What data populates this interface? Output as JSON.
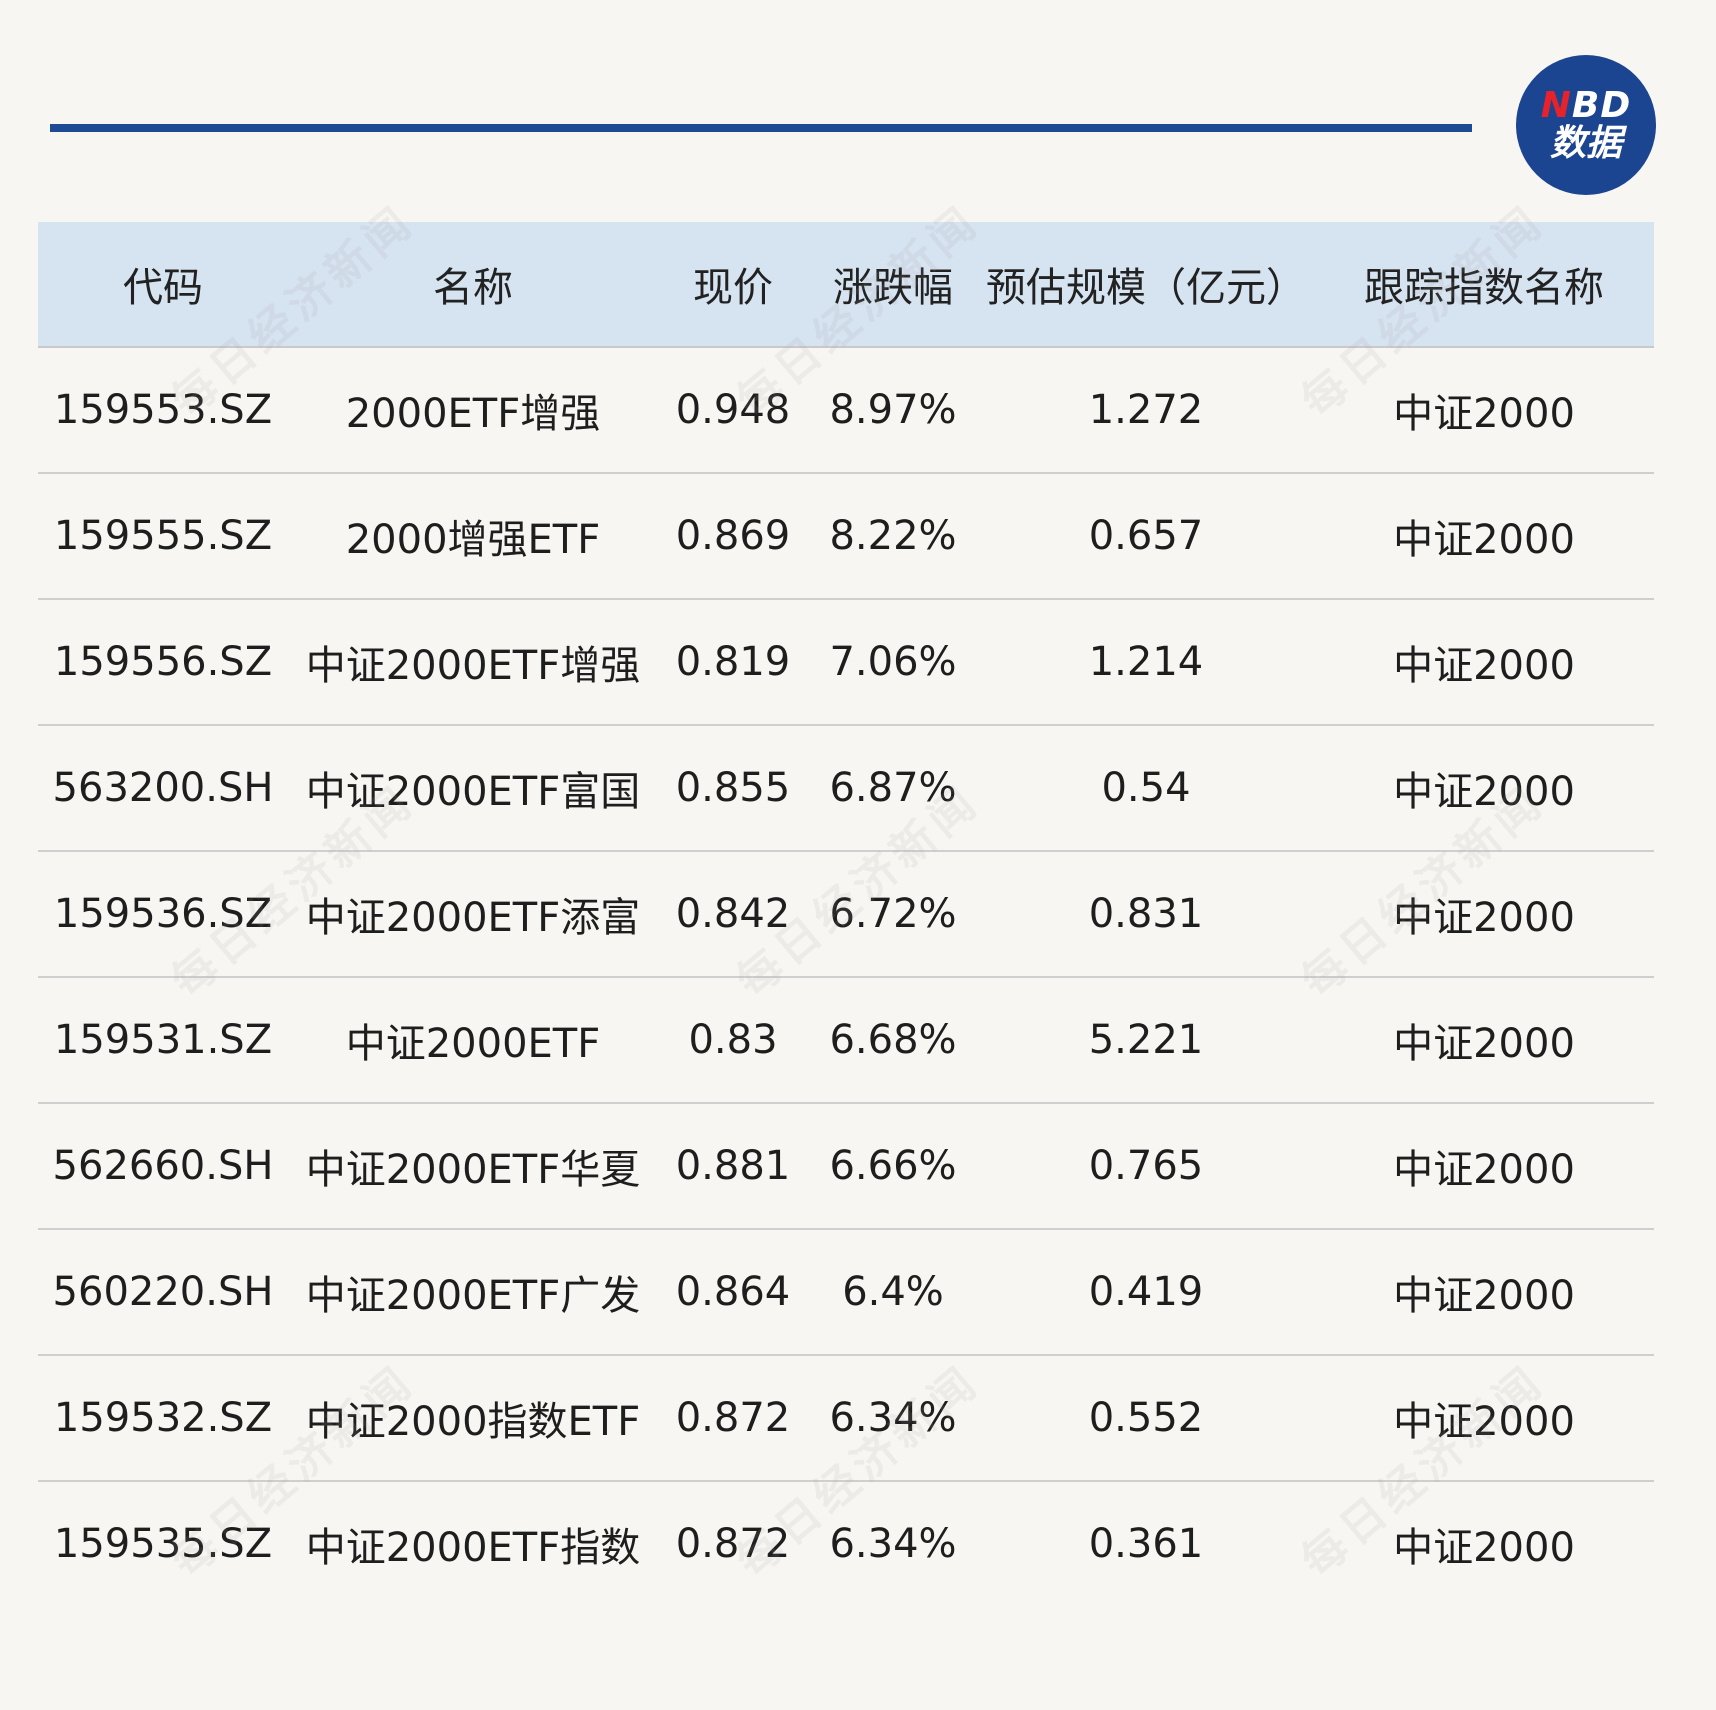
{
  "logo": {
    "brand_n": "N",
    "brand_rest": "BD",
    "sub": "数据"
  },
  "watermark_text": "每日经济新闻",
  "table": {
    "headers": [
      "代码",
      "名称",
      "现价",
      "涨跌幅",
      "预估规模（亿元）",
      "跟踪指数名称"
    ],
    "rows": [
      [
        "159553.SZ",
        "2000ETF增强",
        "0.948",
        "8.97%",
        "1.272",
        "中证2000"
      ],
      [
        "159555.SZ",
        "2000增强ETF",
        "0.869",
        "8.22%",
        "0.657",
        "中证2000"
      ],
      [
        "159556.SZ",
        "中证2000ETF增强",
        "0.819",
        "7.06%",
        "1.214",
        "中证2000"
      ],
      [
        "563200.SH",
        "中证2000ETF富国",
        "0.855",
        "6.87%",
        "0.54",
        "中证2000"
      ],
      [
        "159536.SZ",
        "中证2000ETF添富",
        "0.842",
        "6.72%",
        "0.831",
        "中证2000"
      ],
      [
        "159531.SZ",
        "中证2000ETF",
        "0.83",
        "6.68%",
        "5.221",
        "中证2000"
      ],
      [
        "562660.SH",
        "中证2000ETF华夏",
        "0.881",
        "6.66%",
        "0.765",
        "中证2000"
      ],
      [
        "560220.SH",
        "中证2000ETF广发",
        "0.864",
        "6.4%",
        "0.419",
        "中证2000"
      ],
      [
        "159532.SZ",
        "中证2000指数ETF",
        "0.872",
        "6.34%",
        "0.552",
        "中证2000"
      ],
      [
        "159535.SZ",
        "中证2000ETF指数",
        "0.872",
        "6.34%",
        "0.361",
        "中证2000"
      ]
    ]
  },
  "colors": {
    "rule": "#1d4a93",
    "header_bg": "#d6e3f0",
    "logo_bg": "#1c4591",
    "logo_accent": "#e8222a",
    "page_bg": "#f8f6f2"
  }
}
